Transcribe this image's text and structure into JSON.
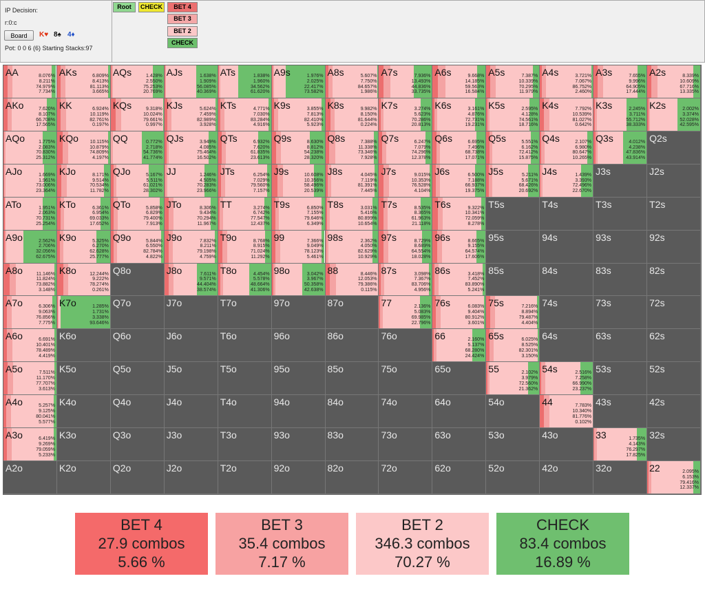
{
  "info": {
    "title": "IP Decision:",
    "line": "r:0:c",
    "board_button": "Board",
    "cards": [
      {
        "text": "K♥",
        "color": "#e03010"
      },
      {
        "text": "8♠",
        "color": "#111111"
      },
      {
        "text": "4♦",
        "color": "#2050c8"
      }
    ],
    "pot": "Pot: 0 0 6 (6) Starting Stacks:97"
  },
  "tree": [
    {
      "label": "Root",
      "bg": "#90d890"
    },
    {
      "label": "CHECK",
      "bg": "#f0e830"
    },
    {
      "label": "BET 4",
      "bg": "#ec7070"
    },
    {
      "label": "BET 3",
      "bg": "#f4a8a8"
    },
    {
      "label": "BET 2",
      "bg": "#fcc8c8"
    },
    {
      "label": "CHECK",
      "bg": "#6cc06c"
    }
  ],
  "colors": {
    "bet4": "#ec6e6e",
    "bet3": "#f4a3a3",
    "bet2": "#fcc6c6",
    "check": "#6cbf6c",
    "empty": "#5a5a5a"
  },
  "grid": [
    [
      "AA|8.076%,8.211%,74.979%,7.734%",
      "AKs|6.809%,8.413%,81.113%,3.665%",
      "AQs|1.428%,2.550%,75.253%,20.769%",
      "AJs|1.638%,1.909%,56.085%,40.369%",
      "ATs|1.838%,1.960%,34.562%,61.620%",
      "A9s|1.976%,2.025%,22.417%,73.582%",
      "A8s|5.607%,7.750%,84.657%,1.986%",
      "A7s|7.936%,13.493%,44.836%,33.735%",
      "A6s|9.668%,14.185%,59.563%,16.584%",
      "A5s|7.387%,10.339%,70.295%,11.979%",
      "A4s|3.721%,7.067%,86.752%,2.460%",
      "A3s|7.655%,9.996%,64.905%,17.444%",
      "A2s|8.339%,10.609%,67.716%,13.335%"
    ],
    [
      "AKo|7.620%,8.107%,66.708%,17.565%",
      "KK|6.924%,10.119%,82.761%,0.197%",
      "KQs|9.318%,10.024%,79.661%,0.997%",
      "KJs|5.624%,7.459%,82.989%,3.928%",
      "KTs|4.771%,7.030%,83.284%,4.916%",
      "K9s|3.855%,7.813%,82.410%,5.923%",
      "K8s|9.982%,8.150%,81.644%,0.224%",
      "K7s|3.274%,5.623%,70.286%,20.813%",
      "K6s|3.161%,4.876%,72.731%,19.231%",
      "K5s|2.595%,4.128%,74.561%,18.716%",
      "K4s|7.792%,10.539%,81.027%,0.642%",
      "K3s|2.245%,3.711%,55.712%,38.333%",
      "K2s|2.002%,3.374%,52.028%,42.595%"
    ],
    [
      "AQo|1.775%,2.083%,70.830%,25.312%",
      "KQo|10.115%,10.879%,74.809%,4.197%",
      "QQ|0.772%,2.718%,54.736%,41.774%",
      "QJs|3.949%,4.085%,75.464%,16.502%",
      "QTs|6.932%,7.620%,61.835%,23.613%",
      "Q9s|8.630%,8.812%,54.238%,28.320%",
      "Q8s|7.388%,11.338%,73.346%,7.928%",
      "Q7s|6.247%,7.079%,74.296%,12.378%",
      "Q6s|6.695%,7.496%,68.738%,17.071%",
      "Q5s|5.551%,6.162%,72.412%,15.875%",
      "Q4s|2.107%,6.980%,80.647%,10.265%",
      "Q3s|4.012%,4.238%,47.836%,43.914%",
      "Q2s|"
    ],
    [
      "AJo|1.669%,1.961%,73.006%,23.364%",
      "KJo|8.171%,9.514%,70.534%,11.782%",
      "QJo|5.167%,5.511%,61.021%,28.302%",
      "JJ|1.246%,4.505%,70.283%,23.966%",
      "JTs|6.254%,7.029%,79.560%,7.157%",
      "J9s|10.608%,10.356%,58.496%,20.539%",
      "J8s|4.045%,7.119%,81.391%,7.445%",
      "J7s|9.015%,10.353%,76.528%,4.104%",
      "J6s|6.500%,7.188%,66.937%,19.375%",
      "J5s|5.211%,5.671%,68.426%,20.692%",
      "J4s|1.439%,3.393%,72.496%,22.670%",
      "J3s|",
      "J2s|"
    ],
    [
      "ATo|1.951%,2.063%,70.731%,25.254%",
      "KTo|6.361%,6.954%,69.033%,17.652%",
      "QTo|5.858%,6.829%,79.400%,7.913%",
      "JTo|8.306%,9.434%,70.294%,11.967%",
      "TT|3.274%,6.742%,77.547%,12.437%",
      "T9s|6.850%,7.155%,79.646%,6.349%",
      "T8s|3.031%,5.416%,80.899%,10.654%",
      "T7s|8.535%,8.365%,61.963%,21.118%",
      "T6s|9.322%,10.341%,72.059%,8.278%",
      "T5s|",
      "T4s|",
      "T3s|",
      "T2s|"
    ],
    [
      "A9o|2.562%,2.706%,32.056%,62.675%",
      "K9o|5.325%,6.270%,62.628%,25.777%",
      "Q9o|5.844%,6.550%,82.784%,4.822%",
      "J9o|7.832%,8.211%,79.198%,4.759%",
      "T9o|8.768%,8.915%,71.024%,11.292%",
      "99|7.366%,9.049%,78.123%,5.461%",
      "98s|2.362%,4.050%,82.629%,10.929%",
      "97s|8.729%,8.689%,64.554%,18.028%",
      "96s|8.665%,9.155%,64.574%,17.606%",
      "95s|",
      "94s|",
      "93s|",
      "92s|"
    ],
    [
      "A8o|11.146%,11.824%,73.882%,3.148%",
      "K8o|12.244%,9.222%,78.274%,0.261%",
      "Q8o|",
      "J8o|7.611%,9.571%,44.404%,38.574%",
      "T8o|4.454%,5.578%,48.664%,41.306%",
      "98o|3.042%,3.967%,50.358%,42.638%",
      "88|8.446%,12.053%,79.386%,0.115%",
      "87s|3.098%,7.367%,83.706%,4.956%",
      "86s|3.418%,7.452%,83.890%,5.241%",
      "85s|",
      "84s|",
      "83s|",
      "82s|"
    ],
    [
      "A7o|6.306%,9.063%,76.856%,7.775%",
      "K7o|1.285%,1.731%,3.338%,93.646%",
      "Q7o|",
      "J7o|",
      "T7o|",
      "97o|",
      "87o|",
      "77|2.136%,5.083%,69.985%,22.796%",
      "76s|6.083%,9.404%,80.912%,3.601%",
      "75s|7.216%,8.894%,79.487%,4.404%",
      "74s|",
      "73s|",
      "72s|"
    ],
    [
      "A6o|6.691%,10.401%,78.489%,4.419%",
      "K6o|",
      "Q6o|",
      "J6o|",
      "T6o|",
      "96o|",
      "86o|",
      "76o|",
      "66|2.160%,5.137%,68.280%,24.424%",
      "65s|6.025%,8.525%,82.301%,3.150%",
      "64s|",
      "63s|",
      "62s|"
    ],
    [
      "A5o|7.511%,11.170%,77.707%,3.613%",
      "K5o|",
      "Q5o|",
      "J5o|",
      "T5o|",
      "95o|",
      "85o|",
      "75o|",
      "65o|",
      "55|2.102%,3.979%,72.560%,21.362%",
      "54s|2.516%,7.258%,66.990%,23.237%",
      "53s|",
      "52s|"
    ],
    [
      "A4o|5.257%,9.125%,80.041%,5.577%",
      "K4o|",
      "Q4o|",
      "J4o|",
      "T4o|",
      "94o|",
      "84o|",
      "74o|",
      "64o|",
      "54o|",
      "44|7.783%,10.340%,81.776%,0.102%",
      "43s|",
      "42s|"
    ],
    [
      "A3o|6.419%,9.269%,79.059%,5.233%",
      "K3o|",
      "Q3o|",
      "J3o|",
      "T3o|",
      "93o|",
      "83o|",
      "73o|",
      "63o|",
      "53o|",
      "43o|",
      "33|1.735%,4.143%,76.297%,17.825%",
      "32s|"
    ],
    [
      "A2o|",
      "K2o|",
      "Q2o|",
      "J2o|",
      "T2o|",
      "92o|",
      "82o|",
      "72o|",
      "62o|",
      "52o|",
      "42o|",
      "32o|",
      "22|2.095%,6.153%,79.416%,12.337%"
    ]
  ],
  "summary": [
    {
      "action": "BET 4",
      "combos": "27.9 combos",
      "pct": "5.66 %",
      "bg": "#f46a6a"
    },
    {
      "action": "BET 3",
      "combos": "35.4 combos",
      "pct": "7.17 %",
      "bg": "#f7a2a2"
    },
    {
      "action": "BET 2",
      "combos": "346.3 combos",
      "pct": "70.27 %",
      "bg": "#fcc8c8"
    },
    {
      "action": "CHECK",
      "combos": "83.4 combos",
      "pct": "16.89 %",
      "bg": "#6fbf6f"
    }
  ]
}
